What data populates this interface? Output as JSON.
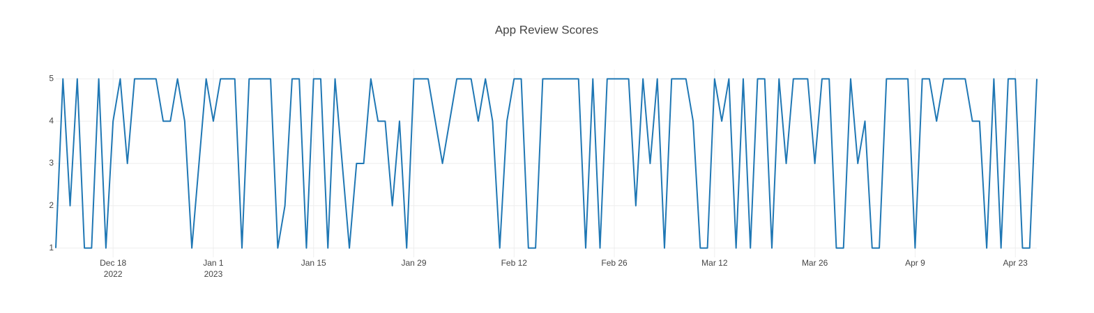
{
  "chart_data": {
    "type": "line",
    "title": "App Review Scores",
    "x": [
      "2022-12-10",
      "2022-12-11",
      "2022-12-12",
      "2022-12-13",
      "2022-12-14",
      "2022-12-15",
      "2022-12-16",
      "2022-12-17",
      "2022-12-18",
      "2022-12-19",
      "2022-12-20",
      "2022-12-21",
      "2022-12-22",
      "2022-12-23",
      "2022-12-24",
      "2022-12-25",
      "2022-12-26",
      "2022-12-27",
      "2022-12-28",
      "2022-12-29",
      "2022-12-30",
      "2022-12-31",
      "2023-01-01",
      "2023-01-02",
      "2023-01-03",
      "2023-01-04",
      "2023-01-05",
      "2023-01-06",
      "2023-01-07",
      "2023-01-08",
      "2023-01-09",
      "2023-01-10",
      "2023-01-11",
      "2023-01-12",
      "2023-01-13",
      "2023-01-14",
      "2023-01-15",
      "2023-01-16",
      "2023-01-17",
      "2023-01-18",
      "2023-01-19",
      "2023-01-20",
      "2023-01-21",
      "2023-01-22",
      "2023-01-23",
      "2023-01-24",
      "2023-01-25",
      "2023-01-26",
      "2023-01-27",
      "2023-01-28",
      "2023-01-29",
      "2023-01-30",
      "2023-01-31",
      "2023-02-01",
      "2023-02-02",
      "2023-02-03",
      "2023-02-04",
      "2023-02-05",
      "2023-02-06",
      "2023-02-07",
      "2023-02-08",
      "2023-02-09",
      "2023-02-10",
      "2023-02-11",
      "2023-02-12",
      "2023-02-13",
      "2023-02-14",
      "2023-02-15",
      "2023-02-16",
      "2023-02-17",
      "2023-02-18",
      "2023-02-19",
      "2023-02-20",
      "2023-02-21",
      "2023-02-22",
      "2023-02-23",
      "2023-02-24",
      "2023-02-25",
      "2023-02-26",
      "2023-02-27",
      "2023-02-28",
      "2023-03-01",
      "2023-03-02",
      "2023-03-03",
      "2023-03-04",
      "2023-03-05",
      "2023-03-06",
      "2023-03-07",
      "2023-03-08",
      "2023-03-09",
      "2023-03-10",
      "2023-03-11",
      "2023-03-12",
      "2023-03-13",
      "2023-03-14",
      "2023-03-15",
      "2023-03-16",
      "2023-03-17",
      "2023-03-18",
      "2023-03-19",
      "2023-03-20",
      "2023-03-21",
      "2023-03-22",
      "2023-03-23",
      "2023-03-24",
      "2023-03-25",
      "2023-03-26",
      "2023-03-27",
      "2023-03-28",
      "2023-03-29",
      "2023-03-30",
      "2023-03-31",
      "2023-04-01",
      "2023-04-02",
      "2023-04-03",
      "2023-04-04",
      "2023-04-05",
      "2023-04-06",
      "2023-04-07",
      "2023-04-08",
      "2023-04-09",
      "2023-04-10",
      "2023-04-11",
      "2023-04-12",
      "2023-04-13",
      "2023-04-14",
      "2023-04-15",
      "2023-04-16",
      "2023-04-17",
      "2023-04-18",
      "2023-04-19",
      "2023-04-20",
      "2023-04-21",
      "2023-04-22",
      "2023-04-23",
      "2023-04-24",
      "2023-04-25",
      "2023-04-26"
    ],
    "series": [
      {
        "color": "#1f77b4",
        "values": [
          1,
          5,
          2,
          5,
          1,
          1,
          5,
          1,
          4,
          5,
          3,
          5,
          5,
          5,
          5,
          4,
          4,
          5,
          4,
          1,
          3,
          5,
          4,
          5,
          5,
          5,
          1,
          5,
          5,
          5,
          5,
          1,
          2,
          5,
          5,
          1,
          5,
          5,
          1,
          5,
          3,
          1,
          3,
          3,
          5,
          4,
          4,
          2,
          4,
          1,
          5,
          5,
          5,
          4,
          3,
          4,
          5,
          5,
          5,
          4,
          5,
          4,
          1,
          4,
          5,
          5,
          1,
          1,
          5,
          5,
          5,
          5,
          5,
          5,
          1,
          5,
          1,
          5,
          5,
          5,
          5,
          2,
          5,
          3,
          5,
          1,
          5,
          5,
          5,
          4,
          1,
          1,
          5,
          4,
          5,
          1,
          5,
          1,
          5,
          5,
          1,
          5,
          3,
          5,
          5,
          5,
          3,
          5,
          5,
          1,
          1,
          5,
          3,
          4,
          1,
          1,
          5,
          5,
          5,
          5,
          1,
          5,
          5,
          4,
          5,
          5,
          5,
          5,
          4,
          4,
          1,
          5,
          1,
          5,
          5,
          1,
          1,
          5
        ]
      }
    ],
    "xlim": [
      "2022-12-10",
      "2023-04-26"
    ],
    "xticks": [
      {
        "value": "2022-12-18",
        "label": [
          "Dec 18",
          "2022"
        ]
      },
      {
        "value": "2023-01-01",
        "label": [
          "Jan 1",
          "2023"
        ]
      },
      {
        "value": "2023-01-15",
        "label": [
          "Jan 15"
        ]
      },
      {
        "value": "2023-01-29",
        "label": [
          "Jan 29"
        ]
      },
      {
        "value": "2023-02-12",
        "label": [
          "Feb 12"
        ]
      },
      {
        "value": "2023-02-26",
        "label": [
          "Feb 26"
        ]
      },
      {
        "value": "2023-03-12",
        "label": [
          "Mar 12"
        ]
      },
      {
        "value": "2023-03-26",
        "label": [
          "Mar 26"
        ]
      },
      {
        "value": "2023-04-09",
        "label": [
          "Apr 9"
        ]
      },
      {
        "value": "2023-04-23",
        "label": [
          "Apr 23"
        ]
      }
    ],
    "ylim": [
      0.78,
      5.22
    ],
    "yticks": [
      1,
      2,
      3,
      4,
      5
    ],
    "grid": true
  }
}
